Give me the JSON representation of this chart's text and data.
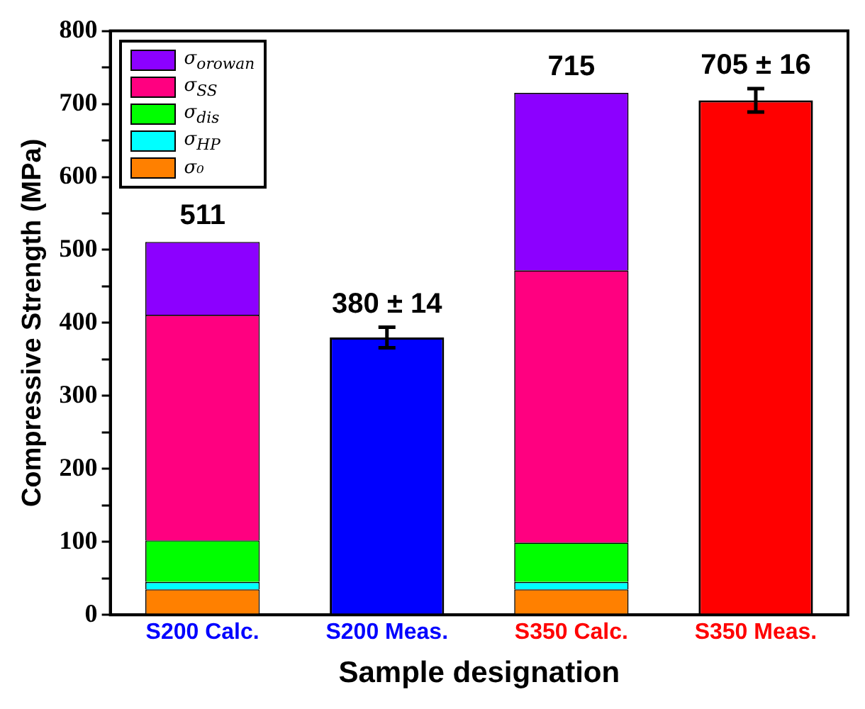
{
  "chart_data": {
    "type": "bar",
    "stacked": true,
    "xlabel": "Sample designation",
    "ylabel": "Compressive Strength (MPa)",
    "categories": [
      "S200 Calc.",
      "S200 Meas.",
      "S350 Calc.",
      "S350 Meas."
    ],
    "series": [
      {
        "name": "σ₀",
        "color": "#ff8000",
        "values": [
          35,
          null,
          35,
          null
        ]
      },
      {
        "name": "σ$_{HP}$",
        "color": "#00ffff",
        "values": [
          10,
          null,
          10,
          null
        ]
      },
      {
        "name": "σ$_{dis}$",
        "color": "#00ff00",
        "values": [
          57,
          null,
          54,
          null
        ]
      },
      {
        "name": "σ$_{SS}$",
        "color": "#ff0080",
        "values": [
          309,
          null,
          373,
          null
        ]
      },
      {
        "name": "σ$_{orowan}$",
        "color": "#8c00ff",
        "values": [
          100,
          null,
          243,
          null
        ]
      },
      {
        "colors": [
          "#0000ff",
          "#0000ff",
          "#ff0000",
          "#ff0000"
        ],
        "values": [
          null,
          380,
          null,
          705
        ],
        "errors": [
          null,
          14,
          null,
          16
        ],
        "value_labels": [
          null,
          "380 ± 14",
          null,
          "705 ± 16"
        ]
      }
    ],
    "totals": [
      "511",
      null,
      "715",
      null
    ],
    "ylim": [
      0,
      800
    ],
    "yticks": [
      0,
      {
        "value": 50,
        "label": null
      },
      100,
      {
        "value": 150,
        "label": null
      },
      200,
      {
        "value": 250,
        "label": null
      },
      300,
      {
        "value": 350,
        "label": null
      },
      400,
      {
        "value": 450,
        "label": null
      },
      500,
      {
        "value": 550,
        "label": null
      },
      600,
      {
        "value": 650,
        "label": null
      },
      700,
      {
        "value": 750,
        "label": null
      },
      800
    ],
    "grid": false,
    "legend": "top left"
  }
}
